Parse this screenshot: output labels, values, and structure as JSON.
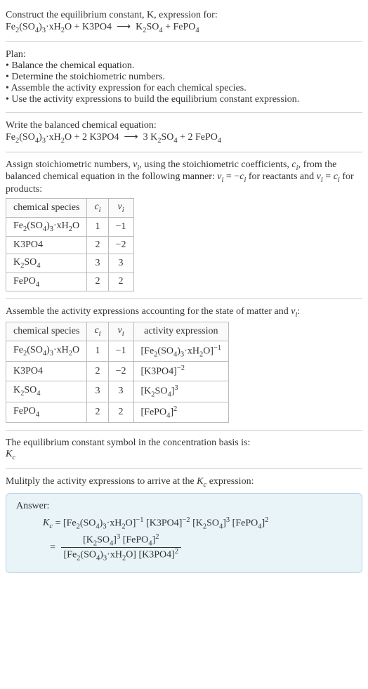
{
  "title_line1": "Construct the equilibrium constant, K, expression for:",
  "equation_unbalanced_html": "Fe<sub>2</sub>(SO<sub>4</sub>)<sub>3</sub>·xH<sub>2</sub>O + K3PO4 &nbsp;⟶&nbsp; K<sub>2</sub>SO<sub>4</sub> + FePO<sub>4</sub>",
  "plan_label": "Plan:",
  "plan_items": [
    "Balance the chemical equation.",
    "Determine the stoichiometric numbers.",
    "Assemble the activity expression for each chemical species.",
    "Use the activity expressions to build the equilibrium constant expression."
  ],
  "balanced_label": "Write the balanced chemical equation:",
  "equation_balanced_html": "Fe<sub>2</sub>(SO<sub>4</sub>)<sub>3</sub>·xH<sub>2</sub>O + 2 K3PO4 &nbsp;⟶&nbsp; 3 K<sub>2</sub>SO<sub>4</sub> + 2 FePO<sub>4</sub>",
  "assign_text_html": "Assign stoichiometric numbers, <span class='italic'>ν<sub>i</sub></span>, using the stoichiometric coefficients, <span class='italic'>c<sub>i</sub></span>, from the balanced chemical equation in the following manner: <span class='italic'>ν<sub>i</sub></span> = −<span class='italic'>c<sub>i</sub></span> for reactants and <span class='italic'>ν<sub>i</sub></span> = <span class='italic'>c<sub>i</sub></span> for products:",
  "table1": {
    "headers": [
      "chemical species",
      "c<sub>i</sub>",
      "ν<sub>i</sub>"
    ],
    "rows": [
      [
        "Fe<sub>2</sub>(SO<sub>4</sub>)<sub>3</sub>·xH<sub>2</sub>O",
        "1",
        "−1"
      ],
      [
        "K3PO4",
        "2",
        "−2"
      ],
      [
        "K<sub>2</sub>SO<sub>4</sub>",
        "3",
        "3"
      ],
      [
        "FePO<sub>4</sub>",
        "2",
        "2"
      ]
    ]
  },
  "assemble_text_html": "Assemble the activity expressions accounting for the state of matter and <span class='italic'>ν<sub>i</sub></span>:",
  "table2": {
    "headers": [
      "chemical species",
      "c<sub>i</sub>",
      "ν<sub>i</sub>",
      "activity expression"
    ],
    "rows": [
      [
        "Fe<sub>2</sub>(SO<sub>4</sub>)<sub>3</sub>·xH<sub>2</sub>O",
        "1",
        "−1",
        "[Fe<sub>2</sub>(SO<sub>4</sub>)<sub>3</sub>·xH<sub>2</sub>O]<sup>−1</sup>"
      ],
      [
        "K3PO4",
        "2",
        "−2",
        "[K3PO4]<sup>−2</sup>"
      ],
      [
        "K<sub>2</sub>SO<sub>4</sub>",
        "3",
        "3",
        "[K<sub>2</sub>SO<sub>4</sub>]<sup>3</sup>"
      ],
      [
        "FePO<sub>4</sub>",
        "2",
        "2",
        "[FePO<sub>4</sub>]<sup>2</sup>"
      ]
    ]
  },
  "eq_symbol_text": "The equilibrium constant symbol in the concentration basis is:",
  "kc_symbol_html": "<span class='italic'>K<sub>c</sub></span>",
  "multiply_text_html": "Mulitply the activity expressions to arrive at the <span class='italic'>K<sub>c</sub></span> expression:",
  "answer_label": "Answer:",
  "answer_line1_html": "<span class='italic'>K<sub>c</sub></span> = [Fe<sub>2</sub>(SO<sub>4</sub>)<sub>3</sub>·xH<sub>2</sub>O]<sup>−1</sup> [K3PO4]<sup>−2</sup> [K<sub>2</sub>SO<sub>4</sub>]<sup>3</sup> [FePO<sub>4</sub>]<sup>2</sup>",
  "answer_eq": "=",
  "answer_num_html": "[K<sub>2</sub>SO<sub>4</sub>]<sup>3</sup> [FePO<sub>4</sub>]<sup>2</sup>",
  "answer_den_html": "[Fe<sub>2</sub>(SO<sub>4</sub>)<sub>3</sub>·xH<sub>2</sub>O] [K3PO4]<sup>2</sup>",
  "colors": {
    "answer_bg": "#e8f4f8",
    "answer_border": "#b5d8e5",
    "rule": "#cccccc",
    "table_border": "#bbbbbb"
  }
}
